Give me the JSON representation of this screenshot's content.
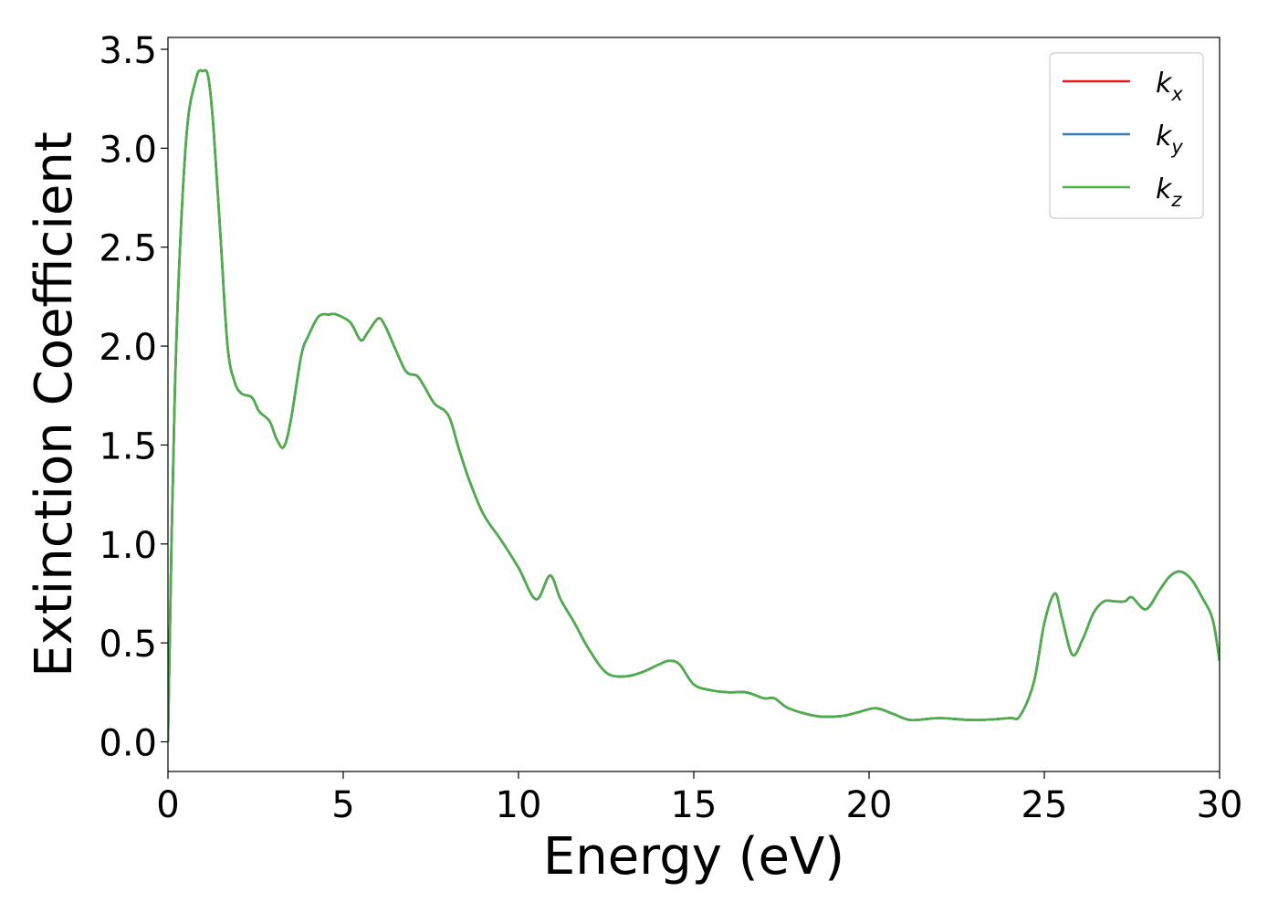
{
  "chart_data": {
    "type": "line",
    "title": "",
    "xlabel": "Energy (eV)",
    "ylabel": "Extinction Coefficient",
    "xlim": [
      0,
      30
    ],
    "ylim": [
      -0.15,
      3.56
    ],
    "xticks": [
      0,
      5,
      10,
      15,
      20,
      25,
      30
    ],
    "xtick_labels": [
      "0",
      "5",
      "10",
      "15",
      "20",
      "25",
      "30"
    ],
    "yticks": [
      0.0,
      0.5,
      1.0,
      1.5,
      2.0,
      2.5,
      3.0,
      3.5
    ],
    "ytick_labels": [
      "0.0",
      "0.5",
      "1.0",
      "1.5",
      "2.0",
      "2.5",
      "3.0",
      "3.5"
    ],
    "grid": false,
    "legend_position": "top-right",
    "series": [
      {
        "name": "k_x",
        "label_main": "k",
        "label_sub": "x",
        "color": "#e41a1c",
        "x": [
          0,
          0.2,
          0.5,
          0.8,
          1.0,
          1.15,
          1.3,
          1.5,
          1.7,
          1.9,
          2.1,
          2.4,
          2.6,
          2.9,
          3.1,
          3.3,
          3.5,
          3.8,
          4.0,
          4.3,
          4.6,
          4.8,
          5.2,
          5.5,
          5.7,
          6.0,
          6.2,
          6.5,
          6.8,
          7.1,
          7.3,
          7.6,
          8.0,
          8.3,
          8.6,
          9.0,
          9.5,
          10.0,
          10.5,
          10.9,
          11.2,
          11.6,
          12.0,
          12.5,
          13.0,
          13.5,
          14.0,
          14.3,
          14.6,
          15.0,
          15.5,
          16.0,
          16.5,
          17.0,
          17.3,
          17.7,
          18.5,
          19.2,
          19.7,
          20.2,
          20.7,
          21.2,
          22.0,
          23.0,
          24.0,
          24.3,
          24.7,
          25.0,
          25.3,
          25.5,
          25.8,
          26.1,
          26.4,
          26.7,
          27.0,
          27.3,
          27.5,
          27.9,
          28.3,
          28.6,
          28.9,
          29.2,
          29.5,
          29.8,
          30.0
        ],
        "y": [
          0.0,
          1.8,
          3.0,
          3.35,
          3.39,
          3.36,
          3.1,
          2.55,
          2.0,
          1.82,
          1.76,
          1.74,
          1.67,
          1.62,
          1.53,
          1.49,
          1.62,
          1.95,
          2.05,
          2.15,
          2.16,
          2.16,
          2.12,
          2.03,
          2.07,
          2.14,
          2.1,
          1.98,
          1.87,
          1.85,
          1.8,
          1.71,
          1.65,
          1.48,
          1.32,
          1.15,
          1.02,
          0.88,
          0.72,
          0.84,
          0.72,
          0.6,
          0.47,
          0.35,
          0.33,
          0.35,
          0.39,
          0.41,
          0.39,
          0.29,
          0.26,
          0.25,
          0.25,
          0.22,
          0.22,
          0.17,
          0.13,
          0.13,
          0.15,
          0.17,
          0.14,
          0.11,
          0.12,
          0.11,
          0.12,
          0.13,
          0.3,
          0.6,
          0.75,
          0.63,
          0.44,
          0.52,
          0.65,
          0.71,
          0.71,
          0.71,
          0.73,
          0.67,
          0.77,
          0.84,
          0.86,
          0.82,
          0.73,
          0.62,
          0.41
        ]
      },
      {
        "name": "k_y",
        "label_main": "k",
        "label_sub": "y",
        "color": "#377eb8",
        "x": [
          0,
          0.2,
          0.5,
          0.8,
          1.0,
          1.15,
          1.3,
          1.5,
          1.7,
          1.9,
          2.1,
          2.4,
          2.6,
          2.9,
          3.1,
          3.3,
          3.5,
          3.8,
          4.0,
          4.3,
          4.6,
          4.8,
          5.2,
          5.5,
          5.7,
          6.0,
          6.2,
          6.5,
          6.8,
          7.1,
          7.3,
          7.6,
          8.0,
          8.3,
          8.6,
          9.0,
          9.5,
          10.0,
          10.5,
          10.9,
          11.2,
          11.6,
          12.0,
          12.5,
          13.0,
          13.5,
          14.0,
          14.3,
          14.6,
          15.0,
          15.5,
          16.0,
          16.5,
          17.0,
          17.3,
          17.7,
          18.5,
          19.2,
          19.7,
          20.2,
          20.7,
          21.2,
          22.0,
          23.0,
          24.0,
          24.3,
          24.7,
          25.0,
          25.3,
          25.5,
          25.8,
          26.1,
          26.4,
          26.7,
          27.0,
          27.3,
          27.5,
          27.9,
          28.3,
          28.6,
          28.9,
          29.2,
          29.5,
          29.8,
          30.0
        ],
        "y": [
          0.0,
          1.8,
          3.0,
          3.35,
          3.39,
          3.36,
          3.1,
          2.55,
          2.0,
          1.82,
          1.76,
          1.74,
          1.67,
          1.62,
          1.53,
          1.49,
          1.62,
          1.95,
          2.05,
          2.15,
          2.16,
          2.16,
          2.12,
          2.03,
          2.07,
          2.14,
          2.1,
          1.98,
          1.87,
          1.85,
          1.8,
          1.71,
          1.65,
          1.48,
          1.32,
          1.15,
          1.02,
          0.88,
          0.72,
          0.84,
          0.72,
          0.6,
          0.47,
          0.35,
          0.33,
          0.35,
          0.39,
          0.41,
          0.39,
          0.29,
          0.26,
          0.25,
          0.25,
          0.22,
          0.22,
          0.17,
          0.13,
          0.13,
          0.15,
          0.17,
          0.14,
          0.11,
          0.12,
          0.11,
          0.12,
          0.13,
          0.3,
          0.6,
          0.75,
          0.63,
          0.44,
          0.52,
          0.65,
          0.71,
          0.71,
          0.71,
          0.73,
          0.67,
          0.77,
          0.84,
          0.86,
          0.82,
          0.73,
          0.62,
          0.41
        ]
      },
      {
        "name": "k_z",
        "label_main": "k",
        "label_sub": "z",
        "color": "#4daf4a",
        "x": [
          0,
          0.2,
          0.5,
          0.8,
          1.0,
          1.15,
          1.3,
          1.5,
          1.7,
          1.9,
          2.1,
          2.4,
          2.6,
          2.9,
          3.1,
          3.3,
          3.5,
          3.8,
          4.0,
          4.3,
          4.6,
          4.8,
          5.2,
          5.5,
          5.7,
          6.0,
          6.2,
          6.5,
          6.8,
          7.1,
          7.3,
          7.6,
          8.0,
          8.3,
          8.6,
          9.0,
          9.5,
          10.0,
          10.5,
          10.9,
          11.2,
          11.6,
          12.0,
          12.5,
          13.0,
          13.5,
          14.0,
          14.3,
          14.6,
          15.0,
          15.5,
          16.0,
          16.5,
          17.0,
          17.3,
          17.7,
          18.5,
          19.2,
          19.7,
          20.2,
          20.7,
          21.2,
          22.0,
          23.0,
          24.0,
          24.3,
          24.7,
          25.0,
          25.3,
          25.5,
          25.8,
          26.1,
          26.4,
          26.7,
          27.0,
          27.3,
          27.5,
          27.9,
          28.3,
          28.6,
          28.9,
          29.2,
          29.5,
          29.8,
          30.0
        ],
        "y": [
          0.0,
          1.8,
          3.0,
          3.35,
          3.39,
          3.36,
          3.1,
          2.55,
          2.0,
          1.82,
          1.76,
          1.74,
          1.67,
          1.62,
          1.53,
          1.49,
          1.62,
          1.95,
          2.05,
          2.15,
          2.16,
          2.16,
          2.12,
          2.03,
          2.07,
          2.14,
          2.1,
          1.98,
          1.87,
          1.85,
          1.8,
          1.71,
          1.65,
          1.48,
          1.32,
          1.15,
          1.02,
          0.88,
          0.72,
          0.84,
          0.72,
          0.6,
          0.47,
          0.35,
          0.33,
          0.35,
          0.39,
          0.41,
          0.39,
          0.29,
          0.26,
          0.25,
          0.25,
          0.22,
          0.22,
          0.17,
          0.13,
          0.13,
          0.15,
          0.17,
          0.14,
          0.11,
          0.12,
          0.11,
          0.12,
          0.13,
          0.3,
          0.6,
          0.75,
          0.63,
          0.44,
          0.52,
          0.65,
          0.71,
          0.71,
          0.71,
          0.73,
          0.67,
          0.77,
          0.84,
          0.86,
          0.82,
          0.73,
          0.62,
          0.41
        ]
      }
    ]
  }
}
